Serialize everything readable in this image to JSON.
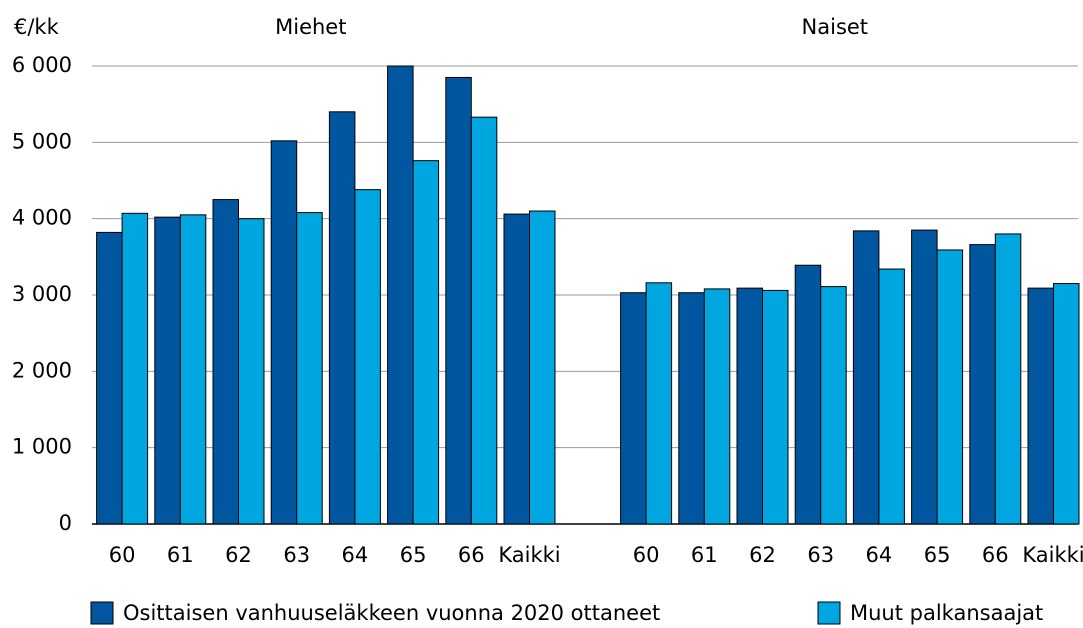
{
  "chart_data": {
    "type": "bar",
    "y_label": "€/kk",
    "ylim": [
      0,
      6000
    ],
    "yticks": [
      0,
      {
        "value": 1000,
        "label": "1 000"
      },
      {
        "value": 2000,
        "label": "2 000"
      },
      {
        "value": 3000,
        "label": "3 000"
      },
      {
        "value": 4000,
        "label": "4 000"
      },
      {
        "value": 5000,
        "label": "5 000"
      },
      {
        "value": 6000,
        "label": "6 000"
      }
    ],
    "grid": true,
    "legend": "bottom",
    "series": [
      {
        "name": "Osittaisen vanhuuseläkkeen vuonna 2020 ottaneet",
        "color": "#0057a0"
      },
      {
        "name": "Muut palkansaajat",
        "color": "#00a6e0"
      }
    ],
    "panels": [
      {
        "title": "Miehet",
        "categories": [
          "60",
          "61",
          "62",
          "63",
          "64",
          "65",
          "66",
          "Kaikki"
        ],
        "values": [
          [
            3820,
            4020,
            4250,
            5020,
            5400,
            6000,
            5850,
            4060
          ],
          [
            4070,
            4050,
            4000,
            4080,
            4380,
            4760,
            5330,
            4100
          ]
        ]
      },
      {
        "title": "Naiset",
        "categories": [
          "60",
          "61",
          "62",
          "63",
          "64",
          "65",
          "66",
          "Kaikki"
        ],
        "values": [
          [
            3030,
            3030,
            3090,
            3390,
            3840,
            3850,
            3660,
            3090
          ],
          [
            3160,
            3080,
            3060,
            3110,
            3340,
            3590,
            3800,
            3150
          ]
        ]
      }
    ]
  }
}
